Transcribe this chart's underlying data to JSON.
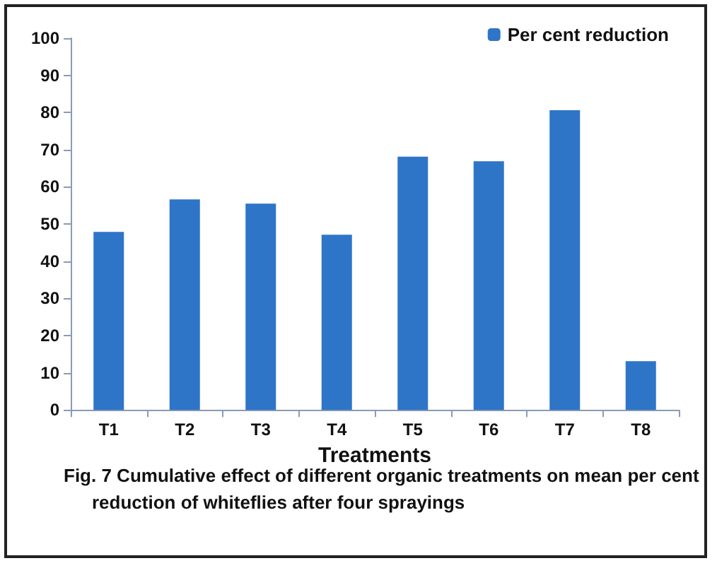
{
  "chart_data": {
    "type": "bar",
    "xlabel": "Treatments",
    "categories": [
      "T1",
      "T2",
      "T3",
      "T4",
      "T5",
      "T6",
      "T7",
      "T8"
    ],
    "series": [
      {
        "name": "Per cent reduction",
        "color": "#2e75c8",
        "values": [
          47.9,
          56.6,
          55.5,
          47.1,
          68.1,
          66.9,
          80.6,
          13.1
        ]
      }
    ],
    "ylim": [
      0,
      100
    ],
    "yticks": [
      0,
      10,
      20,
      30,
      40,
      50,
      60,
      70,
      80,
      90,
      100
    ],
    "grid": false,
    "legend": "top right",
    "annotations": [
      "Fig. 7 Cumulative effect of different organic treatments on mean per cent reduction of whiteflies after four sprayings"
    ]
  }
}
